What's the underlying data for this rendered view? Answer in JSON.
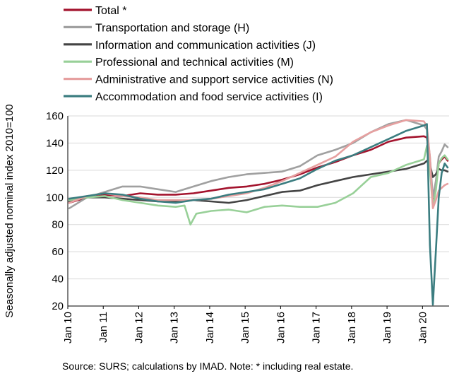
{
  "chart_data": {
    "type": "line",
    "ylabel": "Seasonally adjusted nominal index 2010=100",
    "ylim": [
      20,
      160
    ],
    "yticks": [
      20,
      40,
      60,
      80,
      100,
      120,
      140,
      160
    ],
    "x_start": "2010-01",
    "x_end": "2020-09",
    "xticks": [
      "Jan 10",
      "Jan 11",
      "Jan 12",
      "Jan 13",
      "Jan 14",
      "Jan 15",
      "Jan 16",
      "Jan 17",
      "Jan 18",
      "Jan 19",
      "Jan 20"
    ],
    "grid": "horizontal",
    "legend_position": "top",
    "source_note": "Source:  SURS; calculations by IMAD. Note: * including real estate.",
    "series": [
      {
        "name": "Total *",
        "color": "#a3132d",
        "points": [
          [
            "2010-01",
            96
          ],
          [
            "2010-07",
            100
          ],
          [
            "2011-01",
            102
          ],
          [
            "2011-07",
            101
          ],
          [
            "2012-01",
            103
          ],
          [
            "2012-07",
            102
          ],
          [
            "2013-01",
            102
          ],
          [
            "2013-07",
            103
          ],
          [
            "2014-01",
            105
          ],
          [
            "2014-07",
            107
          ],
          [
            "2015-01",
            108
          ],
          [
            "2015-07",
            110
          ],
          [
            "2016-01",
            113
          ],
          [
            "2016-07",
            117
          ],
          [
            "2017-01",
            122
          ],
          [
            "2017-07",
            126
          ],
          [
            "2018-01",
            131
          ],
          [
            "2018-07",
            135
          ],
          [
            "2019-01",
            141
          ],
          [
            "2019-07",
            144
          ],
          [
            "2020-01",
            145
          ],
          [
            "2020-02",
            144
          ],
          [
            "2020-03",
            128
          ],
          [
            "2020-04",
            96
          ],
          [
            "2020-05",
            108
          ],
          [
            "2020-06",
            125
          ],
          [
            "2020-07",
            128
          ],
          [
            "2020-08",
            130
          ],
          [
            "2020-09",
            127
          ]
        ]
      },
      {
        "name": "Transportation and storage (H)",
        "color": "#a0a0a0",
        "points": [
          [
            "2010-01",
            92
          ],
          [
            "2010-07",
            100
          ],
          [
            "2011-01",
            104
          ],
          [
            "2011-07",
            108
          ],
          [
            "2012-01",
            108
          ],
          [
            "2012-07",
            106
          ],
          [
            "2013-01",
            104
          ],
          [
            "2013-07",
            108
          ],
          [
            "2014-01",
            112
          ],
          [
            "2014-07",
            115
          ],
          [
            "2015-01",
            117
          ],
          [
            "2015-07",
            118
          ],
          [
            "2016-01",
            119
          ],
          [
            "2016-07",
            123
          ],
          [
            "2017-01",
            131
          ],
          [
            "2017-07",
            135
          ],
          [
            "2018-01",
            140
          ],
          [
            "2018-07",
            148
          ],
          [
            "2019-01",
            154
          ],
          [
            "2019-07",
            157
          ],
          [
            "2020-01",
            153
          ],
          [
            "2020-02",
            150
          ],
          [
            "2020-03",
            130
          ],
          [
            "2020-04",
            100
          ],
          [
            "2020-05",
            112
          ],
          [
            "2020-06",
            130
          ],
          [
            "2020-07",
            134
          ],
          [
            "2020-08",
            139
          ],
          [
            "2020-09",
            137
          ]
        ]
      },
      {
        "name": "Information and communication activities (J)",
        "color": "#444444",
        "points": [
          [
            "2010-01",
            97
          ],
          [
            "2010-07",
            100
          ],
          [
            "2011-01",
            100
          ],
          [
            "2011-07",
            99
          ],
          [
            "2012-01",
            98
          ],
          [
            "2012-07",
            97
          ],
          [
            "2013-01",
            97
          ],
          [
            "2013-07",
            98
          ],
          [
            "2014-01",
            97
          ],
          [
            "2014-07",
            96
          ],
          [
            "2015-01",
            98
          ],
          [
            "2015-07",
            101
          ],
          [
            "2016-01",
            104
          ],
          [
            "2016-07",
            105
          ],
          [
            "2017-01",
            109
          ],
          [
            "2017-07",
            112
          ],
          [
            "2018-01",
            115
          ],
          [
            "2018-07",
            117
          ],
          [
            "2019-01",
            119
          ],
          [
            "2019-07",
            121
          ],
          [
            "2020-01",
            125
          ],
          [
            "2020-02",
            127
          ],
          [
            "2020-03",
            124
          ],
          [
            "2020-04",
            115
          ],
          [
            "2020-05",
            117
          ],
          [
            "2020-06",
            121
          ],
          [
            "2020-07",
            120
          ],
          [
            "2020-08",
            120
          ],
          [
            "2020-09",
            119
          ]
        ]
      },
      {
        "name": "Professional and technical activities (M)",
        "color": "#98d098",
        "points": [
          [
            "2010-01",
            98
          ],
          [
            "2010-07",
            100
          ],
          [
            "2011-01",
            101
          ],
          [
            "2011-07",
            98
          ],
          [
            "2012-01",
            96
          ],
          [
            "2012-07",
            94
          ],
          [
            "2013-01",
            93
          ],
          [
            "2013-04",
            94
          ],
          [
            "2013-06",
            80
          ],
          [
            "2013-08",
            88
          ],
          [
            "2014-01",
            90
          ],
          [
            "2014-07",
            91
          ],
          [
            "2015-01",
            89
          ],
          [
            "2015-07",
            93
          ],
          [
            "2016-01",
            94
          ],
          [
            "2016-07",
            93
          ],
          [
            "2017-01",
            93
          ],
          [
            "2017-07",
            96
          ],
          [
            "2018-01",
            103
          ],
          [
            "2018-07",
            115
          ],
          [
            "2019-01",
            118
          ],
          [
            "2019-07",
            124
          ],
          [
            "2020-01",
            128
          ],
          [
            "2020-02",
            138
          ],
          [
            "2020-03",
            120
          ],
          [
            "2020-04",
            93
          ],
          [
            "2020-05",
            105
          ],
          [
            "2020-06",
            125
          ],
          [
            "2020-07",
            129
          ],
          [
            "2020-08",
            131
          ],
          [
            "2020-09",
            128
          ]
        ]
      },
      {
        "name": "Administrative and support service activities (N)",
        "color": "#e6a0a0",
        "points": [
          [
            "2010-01",
            96
          ],
          [
            "2010-07",
            101
          ],
          [
            "2011-01",
            103
          ],
          [
            "2011-07",
            101
          ],
          [
            "2012-01",
            100
          ],
          [
            "2012-07",
            98
          ],
          [
            "2013-01",
            98
          ],
          [
            "2013-07",
            98
          ],
          [
            "2014-01",
            99
          ],
          [
            "2014-07",
            101
          ],
          [
            "2015-01",
            103
          ],
          [
            "2015-07",
            107
          ],
          [
            "2016-01",
            112
          ],
          [
            "2016-07",
            118
          ],
          [
            "2017-01",
            124
          ],
          [
            "2017-07",
            130
          ],
          [
            "2018-01",
            141
          ],
          [
            "2018-07",
            148
          ],
          [
            "2019-01",
            153
          ],
          [
            "2019-07",
            157
          ],
          [
            "2020-01",
            156
          ],
          [
            "2020-02",
            152
          ],
          [
            "2020-03",
            130
          ],
          [
            "2020-04",
            92
          ],
          [
            "2020-05",
            98
          ],
          [
            "2020-06",
            105
          ],
          [
            "2020-07",
            107
          ],
          [
            "2020-08",
            109
          ],
          [
            "2020-09",
            110
          ]
        ]
      },
      {
        "name": "Accommodation and food service activities (I)",
        "color": "#3b7d80",
        "points": [
          [
            "2010-01",
            99
          ],
          [
            "2010-07",
            101
          ],
          [
            "2011-01",
            103
          ],
          [
            "2011-07",
            102
          ],
          [
            "2012-01",
            99
          ],
          [
            "2012-07",
            97
          ],
          [
            "2013-01",
            96
          ],
          [
            "2013-07",
            98
          ],
          [
            "2014-01",
            99
          ],
          [
            "2014-07",
            102
          ],
          [
            "2015-01",
            104
          ],
          [
            "2015-07",
            106
          ],
          [
            "2016-01",
            110
          ],
          [
            "2016-07",
            114
          ],
          [
            "2017-01",
            121
          ],
          [
            "2017-07",
            127
          ],
          [
            "2018-01",
            131
          ],
          [
            "2018-07",
            137
          ],
          [
            "2019-01",
            143
          ],
          [
            "2019-07",
            149
          ],
          [
            "2020-01",
            153
          ],
          [
            "2020-02",
            154
          ],
          [
            "2020-03",
            65
          ],
          [
            "2020-04",
            21
          ],
          [
            "2020-05",
            60
          ],
          [
            "2020-06",
            100
          ],
          [
            "2020-07",
            118
          ],
          [
            "2020-08",
            125
          ],
          [
            "2020-09",
            122
          ]
        ]
      }
    ]
  }
}
